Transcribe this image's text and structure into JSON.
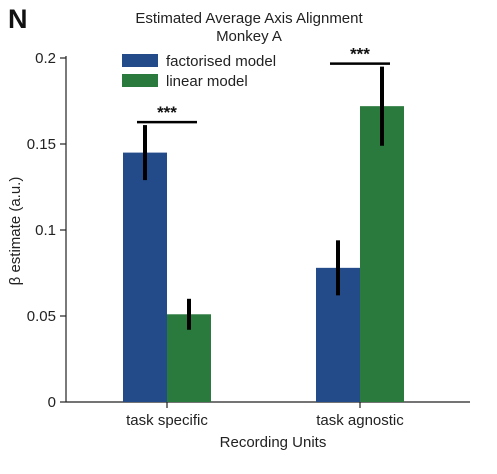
{
  "panel_label": "N",
  "colors": {
    "factorised": "#234b8a",
    "linear": "#2b7a3d"
  },
  "chart_data": {
    "type": "bar",
    "title": "Estimated Average Axis Alignment",
    "subtitle": "Monkey A",
    "xlabel": "Recording Units",
    "ylabel": "β estimate (a.u.)",
    "categories": [
      "task specific",
      "task agnostic"
    ],
    "ylim": [
      0,
      0.2
    ],
    "yticks": [
      0,
      0.05,
      0.1,
      0.15,
      0.2
    ],
    "ytick_labels": [
      "0",
      "0.05",
      "0.1",
      "0.15",
      "0.2"
    ],
    "legend_position": "top-left",
    "grid": false,
    "series": [
      {
        "name": "factorised model",
        "values": [
          0.145,
          0.078
        ],
        "err_low": [
          0.129,
          0.062
        ],
        "err_high": [
          0.161,
          0.094
        ]
      },
      {
        "name": "linear model",
        "values": [
          0.051,
          0.172
        ],
        "err_low": [
          0.042,
          0.149
        ],
        "err_high": [
          0.06,
          0.195
        ]
      }
    ],
    "annotations": [
      {
        "text": "***",
        "category": 0
      },
      {
        "text": "***",
        "category": 1
      }
    ]
  }
}
